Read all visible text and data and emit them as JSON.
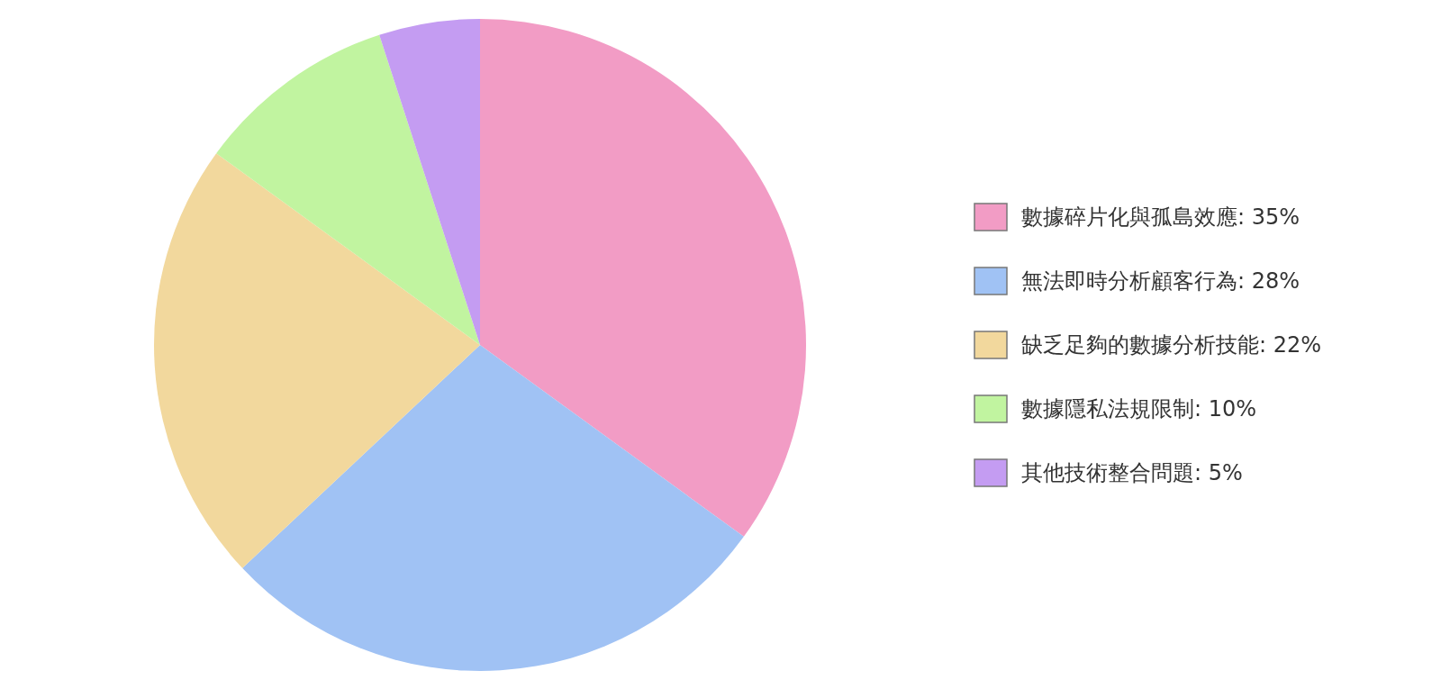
{
  "chart_data": {
    "type": "pie",
    "categories": [
      "數據碎片化與孤島效應: 35%",
      "無法即時分析顧客行為: 28%",
      "缺乏足夠的數據分析技能: 22%",
      "數據隱私法規限制: 10%",
      "其他技術整合問題: 5%"
    ],
    "values": [
      35,
      28,
      22,
      10,
      5
    ],
    "colors": [
      "#f29cc5",
      "#a0c2f4",
      "#f2d89d",
      "#c1f4a0",
      "#c49cf2"
    ],
    "legend": "right"
  }
}
